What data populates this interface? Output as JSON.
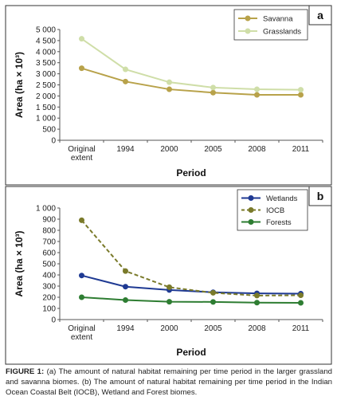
{
  "panels": [
    {
      "panel_label": "a",
      "chart_data": {
        "type": "line",
        "categories": [
          "Original extent",
          "1994",
          "2000",
          "2005",
          "2008",
          "2011"
        ],
        "series": [
          {
            "name": "Savanna",
            "color": "#b8a24a",
            "dash": false,
            "values": [
              3250,
              2650,
              2300,
              2150,
              2050,
              2050
            ]
          },
          {
            "name": "Grasslands",
            "color": "#cfdea8",
            "dash": false,
            "values": [
              4580,
              3200,
              2620,
              2380,
              2300,
              2280
            ]
          }
        ],
        "title": "",
        "xlabel": "Period",
        "ylabel": "Area (ha × 10³)",
        "ylim": [
          0,
          5000
        ],
        "yticks": [
          "0",
          "500",
          "1 000",
          "1 500",
          "2 000",
          "2 500",
          "3 000",
          "3 500",
          "4 000",
          "4 500",
          "5 000"
        ],
        "legend_position": "top-right",
        "grid": false
      }
    },
    {
      "panel_label": "b",
      "chart_data": {
        "type": "line",
        "categories": [
          "Original extent",
          "1994",
          "2000",
          "2005",
          "2008",
          "2011"
        ],
        "series": [
          {
            "name": "Wetlands",
            "color": "#1f3a93",
            "dash": false,
            "values": [
              395,
              295,
              265,
              245,
              235,
              232
            ]
          },
          {
            "name": "IOCB",
            "color": "#7a7a2a",
            "dash": true,
            "values": [
              890,
              435,
              290,
              240,
              215,
              218
            ]
          },
          {
            "name": "Forests",
            "color": "#2e7d32",
            "dash": false,
            "values": [
              200,
              175,
              160,
              158,
              152,
              150
            ]
          }
        ],
        "title": "",
        "xlabel": "Period",
        "ylabel": "Area (ha × 10³)",
        "ylim": [
          0,
          1000
        ],
        "yticks": [
          "0",
          "100",
          "200",
          "300",
          "400",
          "500",
          "600",
          "700",
          "800",
          "900",
          "1 000"
        ],
        "legend_position": "top-right",
        "grid": false
      }
    }
  ],
  "caption": {
    "label": "FIGURE 1:",
    "text": " (a) The amount of natural habitat remaining per time period in the larger grassland and savanna biomes. (b) The amount of natural habitat remaining per time period in the Indian Ocean Coastal Belt (IOCB), Wetland and Forest biomes."
  }
}
